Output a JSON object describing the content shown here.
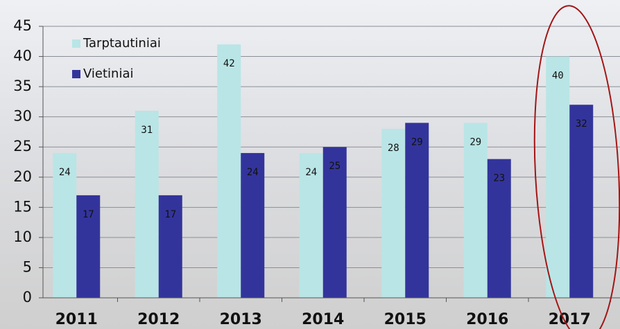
{
  "chart_data": {
    "type": "bar",
    "categories": [
      "2011",
      "2012",
      "2013",
      "2014",
      "2015",
      "2016",
      "2017"
    ],
    "series": [
      {
        "name": "Tarptautiniai",
        "color": "#b9e5e6",
        "values": [
          24,
          31,
          42,
          24,
          28,
          29,
          40
        ]
      },
      {
        "name": "Vietiniai",
        "color": "#33349b",
        "values": [
          17,
          17,
          24,
          25,
          29,
          23,
          32
        ]
      }
    ],
    "ylim": [
      0,
      45
    ],
    "yticks": [
      0,
      5,
      10,
      15,
      20,
      25,
      30,
      35,
      40,
      45
    ],
    "grid": true,
    "legend": "top-left"
  }
}
